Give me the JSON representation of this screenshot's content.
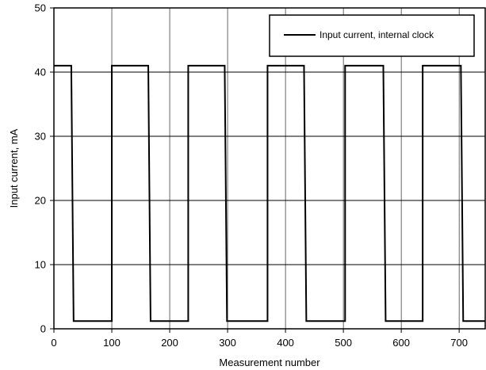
{
  "chart_data": {
    "type": "line",
    "title": "",
    "xlabel": "Measurement number",
    "ylabel": "Input current, mA",
    "xlim": [
      0,
      745
    ],
    "ylim": [
      0,
      50
    ],
    "xticks": [
      0,
      100,
      200,
      300,
      400,
      500,
      600,
      700
    ],
    "yticks": [
      0,
      10,
      20,
      30,
      40,
      50
    ],
    "grid": true,
    "legend_position": "top-right",
    "colors": {
      "line": "#000000",
      "grid": "#000000",
      "background": "#ffffff"
    },
    "series": [
      {
        "name": "Input current, internal clock",
        "x": [
          0,
          30,
          30,
          34,
          34,
          100,
          100,
          104,
          104,
          163,
          163,
          167,
          167,
          232,
          232,
          236,
          236,
          295,
          295,
          299,
          299,
          369,
          369,
          373,
          373,
          432,
          432,
          436,
          436,
          503,
          503,
          507,
          507,
          569,
          569,
          573,
          573,
          637,
          637,
          641,
          641,
          703,
          703,
          707,
          707,
          745
        ],
        "y": [
          41,
          41,
          41,
          1.2,
          1.2,
          1.2,
          41,
          41,
          41,
          41,
          41,
          1.2,
          1.2,
          1.2,
          41,
          41,
          41,
          41,
          41,
          1.2,
          1.2,
          1.2,
          41,
          41,
          41,
          41,
          41,
          1.2,
          1.2,
          1.2,
          41,
          41,
          41,
          41,
          41,
          1.2,
          1.2,
          1.2,
          41,
          41,
          41,
          41,
          41,
          1.2,
          1.2,
          1.2
        ]
      }
    ]
  }
}
